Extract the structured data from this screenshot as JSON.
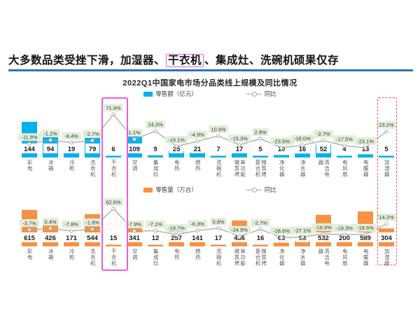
{
  "headline": {
    "prefix": "大多数品类受挫下滑，加湿器、",
    "highlighted": "干衣机",
    "suffix": "、集成灶、洗碗机硕果仅存"
  },
  "chart_title": "2022Q1中国家电市场分品类线上规模及同比情况",
  "watermark_text": "AVC.CO",
  "chart_data": {
    "type": "bar",
    "note": "two stacked panels, each: bar series + YoY line with markers and green labels",
    "categories": [
      "彩电",
      "冰箱",
      "冷柜",
      "洗衣机",
      "干衣机",
      "空调",
      "集成灶",
      "电热",
      "燃热",
      "洗碗机",
      "单功能微蒸烤",
      "微蒸烤复合机",
      "净化器",
      "净水器",
      "清洁电器",
      "电风扇",
      "电暖器",
      "加湿器"
    ],
    "highlighted_categories": [
      "干衣机",
      "加湿器"
    ],
    "charts": [
      {
        "name": "retail-revenue",
        "legend_bar": "零售额（亿元）",
        "legend_line": "同比",
        "bar_color": "#00b0f0",
        "values": [
          144,
          94,
          19,
          79,
          6,
          109,
          9,
          25,
          21,
          7,
          17,
          5,
          10,
          16,
          52,
          4,
          13,
          5
        ],
        "yoy": [
          "-11.8%",
          "-1.2%",
          "-8.4%",
          "-2.7%",
          "71.9%",
          "1.1%",
          "24.3%",
          "-19.1%",
          "-4.9%",
          "10.9%",
          "-15.3%",
          "2.8%",
          "-23.5%",
          "-16.0%",
          "-2.7%",
          "-17.5%",
          "-23.1%",
          "23.2%"
        ]
      },
      {
        "name": "retail-volume",
        "legend_bar": "零售量（万台）",
        "legend_line": "同比",
        "bar_color": "#f79143",
        "values": [
          615,
          426,
          171,
          544,
          15,
          341,
          12,
          257,
          141,
          17,
          436,
          16,
          63,
          98,
          532,
          200,
          589,
          304
        ],
        "yoy": [
          "-3.7%",
          "0.4%",
          "-7.8%",
          "-1.8%",
          "62.6%",
          "-7.9%",
          "-7.1%",
          "-19.7%",
          "-6.3%",
          "0.8%",
          "-24.9%",
          "-2.7%",
          "-28.6%",
          "-27.1%",
          "-16.9%",
          "-19.3%",
          "-18.6%",
          "14.2%"
        ]
      }
    ],
    "colors": {
      "line": "#a8a8a8",
      "yoy_label_bg": "#e2efda",
      "yoy_label_text": "#3b3b3b",
      "value_text": "#1a1a1a",
      "highlight_solid": "#f05ae6",
      "highlight_dashed": "#ff4d4d",
      "rule": "#2e74b5"
    }
  }
}
